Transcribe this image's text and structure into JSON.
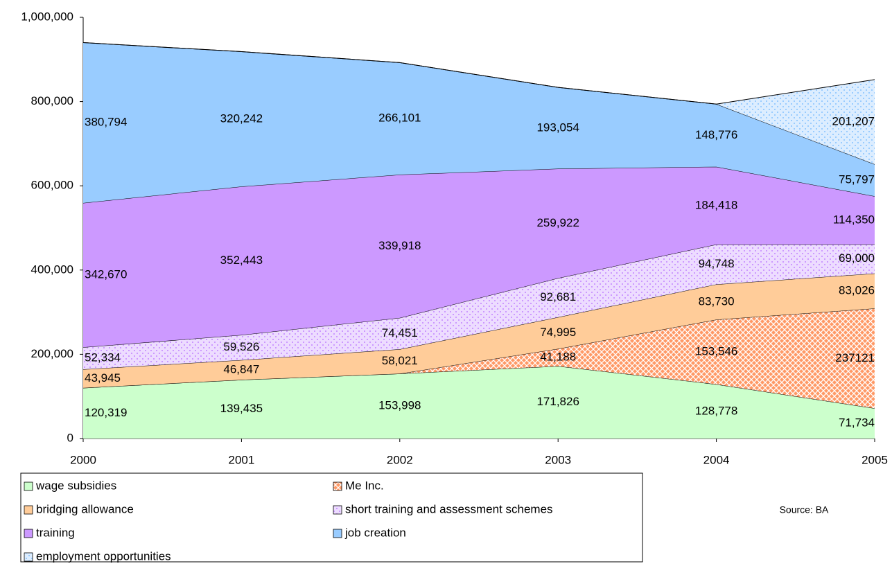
{
  "chart_data": {
    "type": "stacked_area",
    "categories": [
      "2000",
      "2001",
      "2002",
      "2003",
      "2004",
      "2005"
    ],
    "ylim": [
      0,
      1000000
    ],
    "yticks": [
      0,
      {
        "value": 200000,
        "label": "200,000"
      },
      {
        "value": 400000,
        "label": "400,000"
      },
      {
        "value": 600000,
        "label": "600,000"
      },
      {
        "value": 800000,
        "label": "800,000"
      },
      {
        "value": 1000000,
        "label": "1,000,000"
      }
    ],
    "legend": "bottom",
    "annotation": "Source: BA",
    "series": [
      {
        "name": "wage subsidies",
        "color": "#ccffcc",
        "pattern": "solid",
        "values": [
          120319,
          139435,
          153998,
          171826,
          128778,
          71734
        ],
        "value_labels": [
          "120,319",
          "139,435",
          "153,998",
          "171,826",
          "128,778",
          "71,734"
        ]
      },
      {
        "name": "Me Inc.",
        "color": "#ff9966",
        "pattern": "crosshatch",
        "values": [
          0,
          0,
          0,
          41188,
          153546,
          237121
        ],
        "value_labels": [
          null,
          null,
          null,
          "41,188",
          "153,546",
          "237121"
        ]
      },
      {
        "name": "bridging allowance",
        "color": "#ffcc99",
        "pattern": "solid",
        "values": [
          43945,
          46847,
          58021,
          74995,
          83730,
          83026
        ],
        "value_labels": [
          "43,945",
          "46,847",
          "58,021",
          "74,995",
          "83,730",
          "83,026"
        ]
      },
      {
        "name": "short training and assessment schemes",
        "color": "#cc99ff",
        "pattern": "dots",
        "values": [
          52334,
          59526,
          74451,
          92681,
          94748,
          69000
        ],
        "value_labels": [
          "52,334",
          "59,526",
          "74,451",
          "92,681",
          "94,748",
          "69,000"
        ]
      },
      {
        "name": "training",
        "color": "#cc99ff",
        "pattern": "solid",
        "values": [
          342670,
          352443,
          339918,
          259922,
          184418,
          114350
        ],
        "value_labels": [
          "342,670",
          "352,443",
          "339,918",
          "259,922",
          "184,418",
          "114,350"
        ]
      },
      {
        "name": "job creation",
        "color": "#99ccff",
        "pattern": "solid",
        "values": [
          380794,
          320242,
          266101,
          193054,
          148776,
          75797
        ],
        "value_labels": [
          "380,794",
          "320,242",
          "266,101",
          "193,054",
          "148,776",
          "75,797"
        ]
      },
      {
        "name": "employment opportunities",
        "color": "#99ccff",
        "pattern": "dots",
        "values": [
          0,
          0,
          0,
          0,
          0,
          201207
        ],
        "value_labels": [
          null,
          null,
          null,
          null,
          null,
          "201,207"
        ]
      }
    ]
  }
}
